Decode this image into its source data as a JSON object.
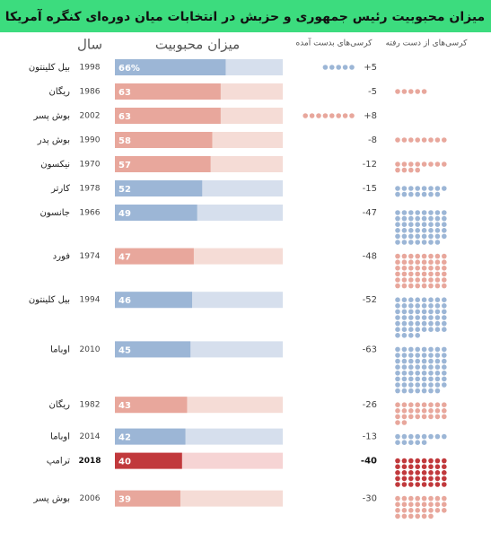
{
  "chart_data": {
    "type": "bar",
    "title": "میزان محبوبیت رئیس جمهوری و حزبش در انتخابات میان دوره‌ای کنگره آمریکا",
    "headers": {
      "year": "سال",
      "approval": "میزان محبوبیت",
      "gained": "کرسی‌های بدست آمده",
      "lost": "کرسی‌های از دست رفته"
    },
    "categories": [
      "بیل کلینتون",
      "ریگان",
      "بوش پسر",
      "بوش پدر",
      "نیکسون",
      "کارتر",
      "جانسون",
      "فورد",
      "بیل کلینتون",
      "اوباما",
      "ریگان",
      "اوباما",
      "ترامپ",
      "بوش پسر"
    ],
    "years": [
      1998,
      1986,
      2002,
      1990,
      1970,
      1978,
      1966,
      1974,
      1994,
      2010,
      1982,
      2014,
      2018,
      2006
    ],
    "values": [
      66,
      63,
      63,
      58,
      57,
      52,
      49,
      47,
      46,
      45,
      43,
      42,
      40,
      39
    ],
    "value_labels": [
      "66%",
      "63",
      "63",
      "58",
      "57",
      "52",
      "49",
      "47",
      "46",
      "45",
      "43",
      "42",
      "40",
      "39"
    ],
    "xlim": [
      0,
      100
    ],
    "seats": [
      5,
      -5,
      8,
      -8,
      -12,
      -15,
      -47,
      -48,
      -52,
      -63,
      -26,
      -13,
      -40,
      -30
    ],
    "seat_labels": [
      "+5",
      "-5",
      "+8",
      "-8",
      "-12",
      "-15",
      "-47",
      "-48",
      "-52",
      "-63",
      "-26",
      "-13",
      "-40",
      "-30"
    ],
    "colors": [
      "#9cb6d6",
      "#e8a79c",
      "#e8a79c",
      "#e8a79c",
      "#e8a79c",
      "#9cb6d6",
      "#9cb6d6",
      "#e8a79c",
      "#9cb6d6",
      "#9cb6d6",
      "#e8a79c",
      "#9cb6d6",
      "#c1393c",
      "#e8a79c"
    ],
    "track_colors": [
      "#d6dfed",
      "#f5dcd6",
      "#f5dcd6",
      "#f5dcd6",
      "#f5dcd6",
      "#d6dfed",
      "#d6dfed",
      "#f5dcd6",
      "#d6dfed",
      "#d6dfed",
      "#f5dcd6",
      "#d6dfed",
      "#f6d4d4",
      "#f5dcd6"
    ],
    "highlight": 12
  }
}
